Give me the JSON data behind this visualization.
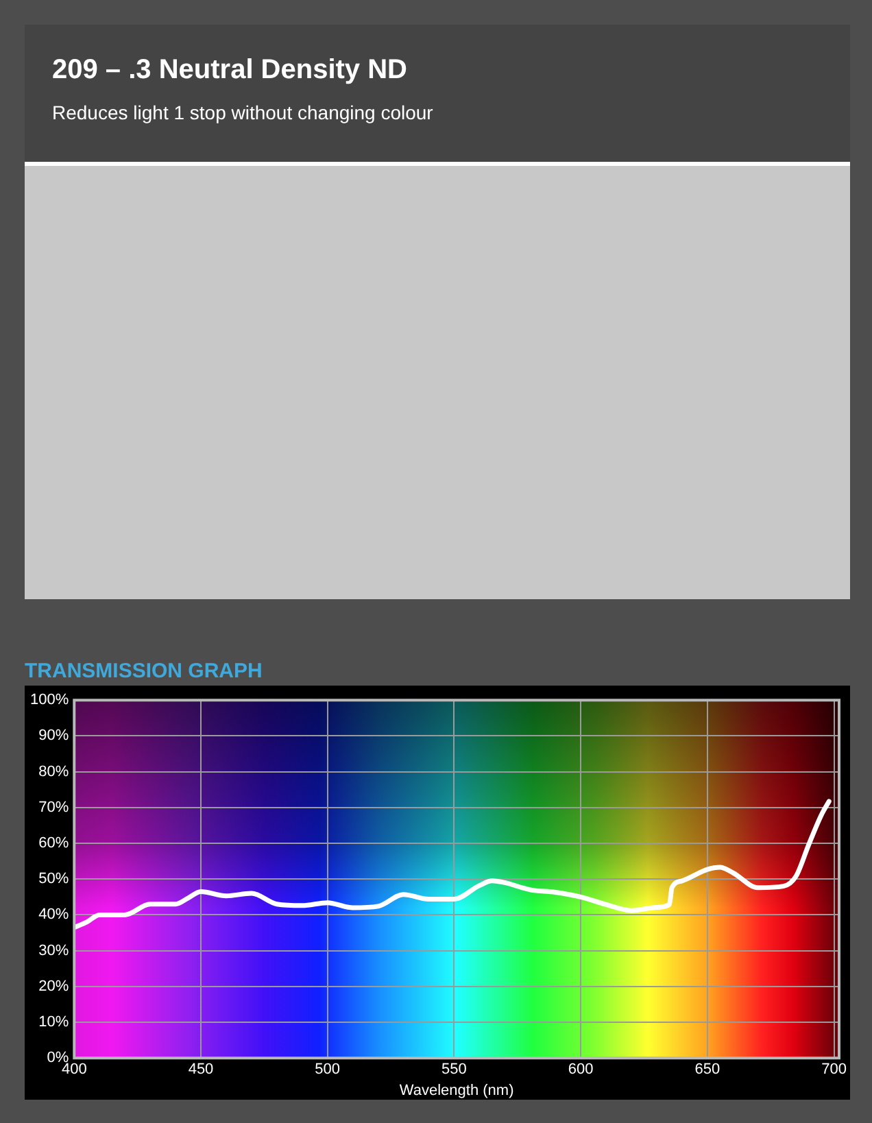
{
  "chart_data": {
    "type": "line",
    "title": "209 – .3 Neutral Density ND",
    "subtitle": "Reduces light 1 stop without changing colour",
    "annotations": [
      "TRANSMISSION GRAPH"
    ],
    "xlabel": "Wavelength (nm)",
    "x": [
      400,
      405,
      410,
      420,
      430,
      440,
      445,
      450,
      460,
      470,
      480,
      490,
      500,
      510,
      520,
      530,
      540,
      550,
      560,
      565,
      570,
      580,
      590,
      600,
      610,
      620,
      630,
      635,
      636,
      640,
      650,
      655,
      660,
      670,
      680,
      685,
      690,
      695,
      698
    ],
    "series": [
      {
        "color": "#ffffff",
        "values": [
          36.5,
          38,
          40,
          40,
          43,
          43,
          44.7,
          46.5,
          45.3,
          46,
          43,
          42.6,
          43.4,
          42,
          42.4,
          45.7,
          44.4,
          44.4,
          48.2,
          49.5,
          49,
          47,
          46.3,
          45,
          42.9,
          41.2,
          42.1,
          42.9,
          47.6,
          49.5,
          52.7,
          53.3,
          51.8,
          47.6,
          48,
          50.8,
          59.6,
          67.9,
          71.7
        ]
      }
    ],
    "xlim": [
      400,
      702
    ],
    "xticks": [
      400,
      450,
      500,
      550,
      600,
      650,
      700
    ],
    "ylim": [
      0,
      100
    ],
    "yticks": [
      {
        "value": 0,
        "label": "0%"
      },
      {
        "value": 10,
        "label": "10%"
      },
      {
        "value": 20,
        "label": "20%"
      },
      {
        "value": 30,
        "label": "30%"
      },
      {
        "value": 40,
        "label": "40%"
      },
      {
        "value": 50,
        "label": "50%"
      },
      {
        "value": 60,
        "label": "60%"
      },
      {
        "value": 70,
        "label": "70%"
      },
      {
        "value": 80,
        "label": "80%"
      },
      {
        "value": 90,
        "label": "90%"
      },
      {
        "value": 100,
        "label": "100%"
      }
    ],
    "grid": true,
    "legend": false,
    "marker": "none",
    "line_style": "solid"
  }
}
